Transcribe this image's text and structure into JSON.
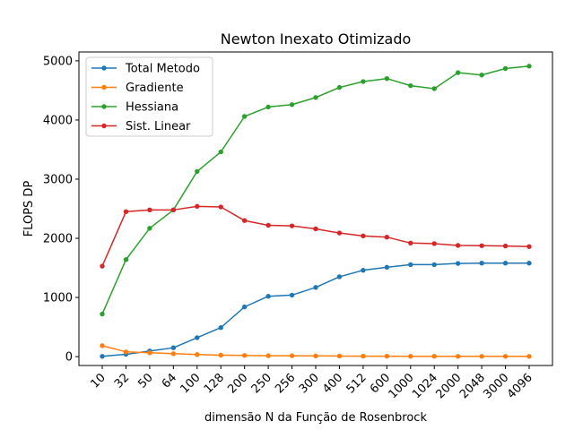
{
  "chart_data": {
    "type": "line",
    "title": "Newton Inexato Otimizado",
    "xlabel": "dimensão N da Função de Rosenbrock",
    "ylabel": "FLOPS DP",
    "categories": [
      "10",
      "32",
      "50",
      "64",
      "100",
      "128",
      "200",
      "250",
      "256",
      "300",
      "400",
      "512",
      "600",
      "1000",
      "1024",
      "2000",
      "2048",
      "3000",
      "4096"
    ],
    "ylim": [
      -150,
      5150
    ],
    "yticks": [
      0,
      1000,
      2000,
      3000,
      4000,
      5000
    ],
    "grid": false,
    "legend_position": "top-left",
    "series": [
      {
        "name": "Total Metodo",
        "color": "#1f77b4",
        "values": [
          5,
          40,
          95,
          150,
          320,
          490,
          840,
          1020,
          1040,
          1170,
          1350,
          1460,
          1510,
          1555,
          1555,
          1575,
          1580,
          1580,
          1580
        ]
      },
      {
        "name": "Gradiente",
        "color": "#ff7f0e",
        "values": [
          185,
          80,
          65,
          50,
          35,
          25,
          20,
          15,
          15,
          12,
          10,
          8,
          7,
          6,
          6,
          5,
          5,
          5,
          5
        ]
      },
      {
        "name": "Hessiana",
        "color": "#2ca02c",
        "values": [
          720,
          1640,
          2170,
          2480,
          3130,
          3460,
          4060,
          4220,
          4260,
          4380,
          4550,
          4650,
          4700,
          4580,
          4530,
          4800,
          4760,
          4870,
          4910
        ]
      },
      {
        "name": "Sist. Linear",
        "color": "#d62728",
        "values": [
          1530,
          2450,
          2480,
          2480,
          2540,
          2530,
          2300,
          2220,
          2210,
          2160,
          2090,
          2040,
          2020,
          1920,
          1910,
          1880,
          1875,
          1870,
          1860
        ]
      }
    ]
  }
}
